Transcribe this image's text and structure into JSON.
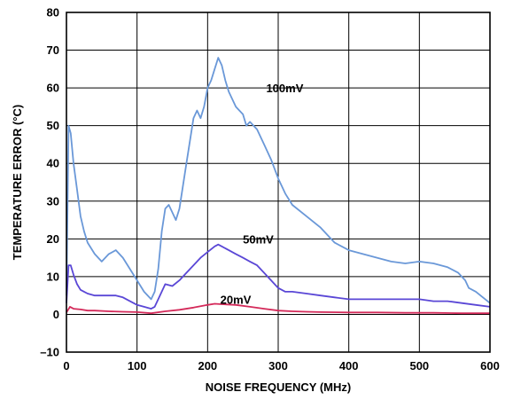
{
  "chart_data": {
    "type": "line",
    "title": "",
    "xlabel": "NOISE FREQUENCY (MHz)",
    "ylabel": "TEMPERATURE ERROR (°C)",
    "xlim": [
      0,
      600
    ],
    "ylim": [
      -10,
      80
    ],
    "xticks": [
      "0",
      "100",
      "200",
      "300",
      "400",
      "500",
      "600"
    ],
    "yticks": [
      "–10",
      "0",
      "10",
      "20",
      "30",
      "40",
      "50",
      "60",
      "70",
      "80"
    ],
    "grid": true,
    "legend": "none",
    "series": [
      {
        "name": "100mV",
        "color": "#6a98d8",
        "x": [
          0,
          3,
          6,
          10,
          15,
          20,
          25,
          30,
          40,
          50,
          60,
          70,
          80,
          90,
          100,
          110,
          120,
          125,
          130,
          135,
          140,
          145,
          150,
          155,
          160,
          170,
          180,
          185,
          190,
          195,
          200,
          205,
          210,
          215,
          220,
          225,
          230,
          240,
          250,
          255,
          260,
          270,
          280,
          290,
          300,
          310,
          320,
          340,
          360,
          380,
          400,
          420,
          440,
          460,
          480,
          500,
          520,
          540,
          555,
          565,
          570,
          580,
          590,
          600
        ],
        "y": [
          5,
          50,
          48,
          40,
          33,
          26,
          22,
          19,
          16,
          14,
          16,
          17,
          15,
          12,
          9,
          6,
          4,
          6,
          12,
          22,
          28,
          29,
          27,
          25,
          28,
          40,
          52,
          54,
          52,
          55,
          60,
          62,
          65,
          68,
          66,
          62,
          59,
          55,
          53,
          50,
          51,
          49,
          45,
          41,
          36,
          32,
          29,
          26,
          23,
          19,
          17,
          16,
          15,
          14,
          13.5,
          14,
          13.5,
          12.5,
          11,
          9,
          7,
          6,
          4.5,
          3
        ]
      },
      {
        "name": "50mV",
        "color": "#5a47d6",
        "x": [
          0,
          3,
          6,
          10,
          15,
          20,
          25,
          30,
          40,
          50,
          60,
          70,
          80,
          90,
          100,
          110,
          120,
          125,
          130,
          140,
          150,
          160,
          170,
          180,
          190,
          200,
          210,
          215,
          220,
          230,
          240,
          250,
          260,
          270,
          280,
          290,
          300,
          310,
          320,
          340,
          360,
          380,
          400,
          420,
          440,
          460,
          480,
          500,
          520,
          540,
          560,
          580,
          600
        ],
        "y": [
          3,
          13,
          13,
          10.5,
          8,
          6.5,
          6,
          5.5,
          5,
          5,
          5,
          5,
          4.5,
          3.5,
          2.5,
          2,
          1.5,
          2,
          4,
          8,
          7.5,
          9,
          11,
          13,
          15,
          16.5,
          18,
          18.5,
          18,
          17,
          16,
          15,
          14,
          13,
          11,
          9,
          7,
          6,
          6,
          5.5,
          5,
          4.5,
          4,
          4,
          4,
          4,
          4,
          4,
          3.5,
          3.5,
          3,
          2.5,
          2
        ]
      },
      {
        "name": "20mV",
        "color": "#d42a5a",
        "x": [
          0,
          5,
          10,
          20,
          30,
          40,
          60,
          80,
          100,
          120,
          140,
          160,
          180,
          200,
          210,
          220,
          240,
          260,
          280,
          300,
          320,
          340,
          360,
          400,
          440,
          480,
          520,
          560,
          600
        ],
        "y": [
          0.5,
          2,
          1.5,
          1.3,
          1,
          1,
          0.8,
          0.7,
          0.6,
          0.3,
          0.8,
          1.2,
          1.8,
          2.5,
          2.8,
          2.7,
          2.5,
          2,
          1.5,
          1,
          0.8,
          0.7,
          0.6,
          0.5,
          0.5,
          0.4,
          0.4,
          0.3,
          0.3
        ]
      }
    ],
    "annotations": [
      {
        "text": "100mV",
        "x": 283,
        "y": 60
      },
      {
        "text": "50mV",
        "x": 250,
        "y": 20
      },
      {
        "text": "20mV",
        "x": 218,
        "y": 4
      }
    ]
  }
}
